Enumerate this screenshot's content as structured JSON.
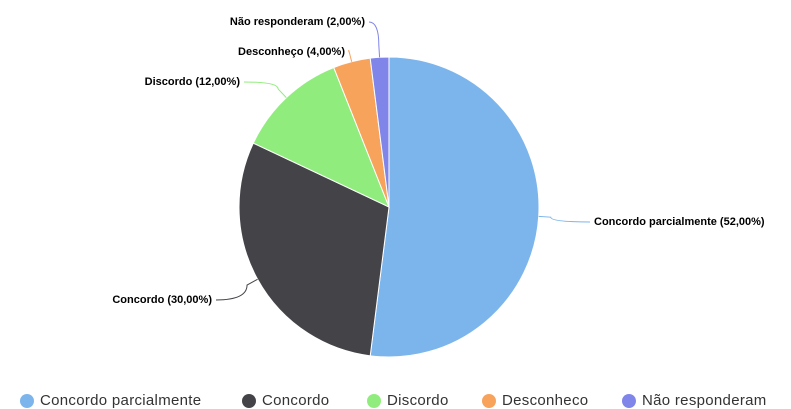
{
  "chart_data": {
    "type": "pie",
    "categories": [
      "Concordo parcialmente",
      "Concordo",
      "Discordo",
      "Desconheco",
      "Não responderam"
    ],
    "values": [
      52,
      30,
      12,
      4,
      2
    ],
    "value_labels": [
      "Concordo parcialmente (52,00%)",
      "Concordo (30,00%)",
      "Discordo (12,00%)",
      "Desconheço (4,00%)",
      "Não responderam (2,00%)"
    ],
    "colors": [
      "#7cb5ec",
      "#434348",
      "#90ed7d",
      "#f7a35c",
      "#8085e9"
    ],
    "legend": "bottom"
  }
}
